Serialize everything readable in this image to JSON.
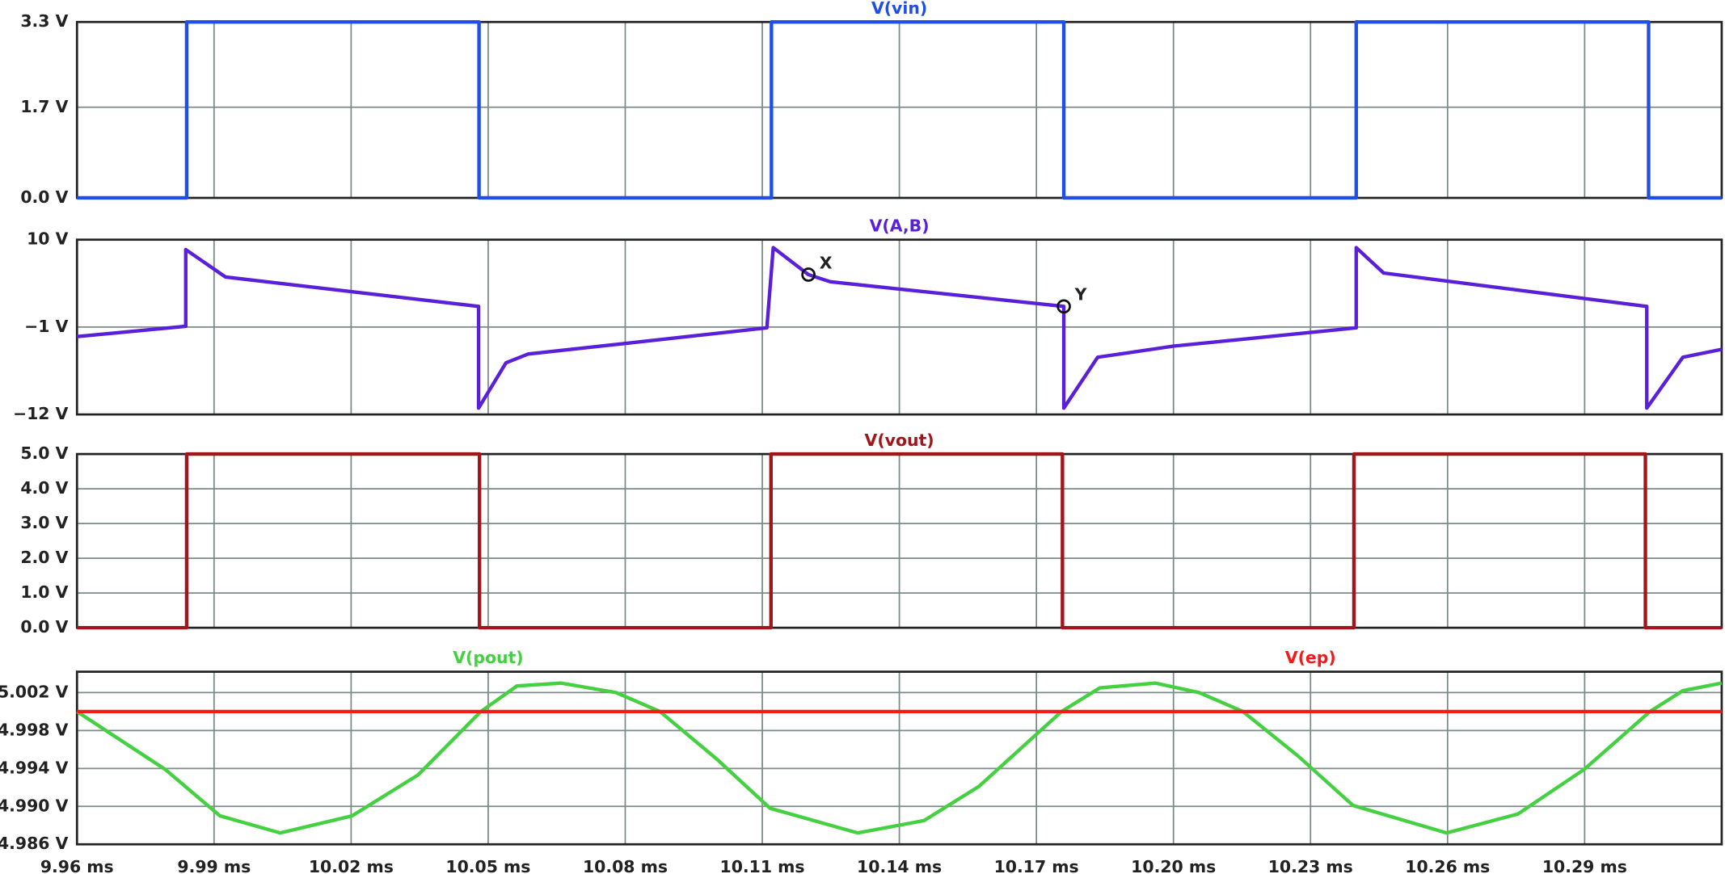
{
  "chart_data": [
    {
      "type": "line",
      "xlim": [
        9.96,
        10.32
      ],
      "ylim": [
        0,
        3.3
      ],
      "yticks": [
        {
          "value": 0,
          "label": "0.0 V"
        },
        {
          "value": 1.7,
          "label": "1.7 V"
        },
        {
          "value": 3.3,
          "label": "3.3 V"
        }
      ],
      "series": [
        {
          "name": "V(vin)",
          "color": "#1f4fe6",
          "x": [
            9.96,
            9.984,
            9.984,
            10.048,
            10.048,
            10.112,
            10.112,
            10.176,
            10.176,
            10.24,
            10.24,
            10.304,
            10.304,
            10.32
          ],
          "values": [
            0,
            0,
            3.3,
            3.3,
            0,
            0,
            3.3,
            3.3,
            0,
            0,
            3.3,
            3.3,
            0,
            0
          ]
        }
      ]
    },
    {
      "type": "line",
      "xlim": [
        9.96,
        10.32
      ],
      "ylim": [
        -12,
        10
      ],
      "yticks": [
        {
          "value": -12,
          "label": "−12 V"
        },
        {
          "value": -1,
          "label": "−1 V"
        },
        {
          "value": 10,
          "label": "10 V"
        }
      ],
      "series": [
        {
          "name": "V(A,B)",
          "color": "#5a1fd8",
          "x": [
            9.96,
            9.9838,
            9.9838,
            9.9925,
            10.0479,
            10.0479,
            10.0539,
            10.0587,
            10.111,
            10.1124,
            10.1201,
            10.1249,
            10.176,
            10.176,
            10.1834,
            10.2,
            10.24,
            10.24,
            10.246,
            10.3036,
            10.3036,
            10.3115,
            10.32
          ],
          "values": [
            -2.2,
            -0.9,
            8.75,
            5.3,
            1.6,
            -11.2,
            -5.5,
            -4.4,
            -1.1,
            9.0,
            5.6,
            4.7,
            1.6,
            -11.2,
            -4.8,
            -3.4,
            -1.1,
            9.0,
            5.8,
            1.6,
            -11.2,
            -4.8,
            -3.8
          ]
        }
      ],
      "annotations": [
        {
          "text": "X",
          "x": 10.1201,
          "y": 5.6
        },
        {
          "text": "Y",
          "x": 10.176,
          "y": 1.6
        }
      ]
    },
    {
      "type": "line",
      "xlim": [
        9.96,
        10.32
      ],
      "ylim": [
        0,
        5
      ],
      "yticks": [
        {
          "value": 0,
          "label": "0.0 V"
        },
        {
          "value": 1,
          "label": "1.0 V"
        },
        {
          "value": 2,
          "label": "2.0 V"
        },
        {
          "value": 3,
          "label": "3.0 V"
        },
        {
          "value": 4,
          "label": "4.0 V"
        },
        {
          "value": 5,
          "label": "5.0 V"
        }
      ],
      "series": [
        {
          "name": "V(vout)",
          "color": "#a0161a",
          "x": [
            9.96,
            9.984,
            9.984,
            10.0481,
            10.0481,
            10.1119,
            10.1119,
            10.1757,
            10.1757,
            10.2395,
            10.2395,
            10.3033,
            10.3033,
            10.32
          ],
          "values": [
            0,
            0,
            5,
            5,
            0,
            0,
            5,
            5,
            0,
            0,
            5,
            5,
            0,
            0
          ]
        }
      ]
    },
    {
      "type": "line",
      "xlim": [
        9.96,
        10.32
      ],
      "ylim": [
        4.986,
        5.0042
      ],
      "xticks": [
        {
          "value": 9.96,
          "label": "9.96 ms"
        },
        {
          "value": 9.99,
          "label": "9.99 ms"
        },
        {
          "value": 10.02,
          "label": "10.02 ms"
        },
        {
          "value": 10.05,
          "label": "10.05 ms"
        },
        {
          "value": 10.08,
          "label": "10.08 ms"
        },
        {
          "value": 10.11,
          "label": "10.11 ms"
        },
        {
          "value": 10.14,
          "label": "10.14 ms"
        },
        {
          "value": 10.17,
          "label": "10.17 ms"
        },
        {
          "value": 10.2,
          "label": "10.20 ms"
        },
        {
          "value": 10.23,
          "label": "10.23 ms"
        },
        {
          "value": 10.26,
          "label": "10.26 ms"
        },
        {
          "value": 10.29,
          "label": "10.29 ms"
        }
      ],
      "yticks": [
        {
          "value": 4.986,
          "label": "4.986 V"
        },
        {
          "value": 4.99,
          "label": "4.990 V"
        },
        {
          "value": 4.994,
          "label": "4.994 V"
        },
        {
          "value": 4.998,
          "label": "4.998 V"
        },
        {
          "value": 5.002,
          "label": "5.002 V"
        }
      ],
      "series": [
        {
          "name": "V(pout)",
          "color": "#44d040",
          "x": [
            9.96,
            9.9793,
            9.9913,
            10.0045,
            10.0202,
            10.0346,
            10.0484,
            10.0563,
            10.0659,
            10.078,
            10.0876,
            10.1,
            10.1117,
            10.1309,
            10.1454,
            10.1574,
            10.1755,
            10.1839,
            10.196,
            10.2056,
            10.2152,
            10.2273,
            10.2393,
            10.2598,
            10.2754,
            10.2899,
            10.3043,
            10.3115,
            10.32
          ],
          "values": [
            5.0,
            4.9939,
            4.989,
            4.9872,
            4.989,
            4.9933,
            5.0,
            5.0027,
            5.003,
            5.002,
            5.0,
            4.995,
            4.9898,
            4.9872,
            4.9885,
            4.9921,
            5.0,
            5.0025,
            5.003,
            5.002,
            5.0,
            4.9953,
            4.9901,
            4.9872,
            4.9892,
            4.9939,
            5.0,
            5.0022,
            5.003
          ]
        },
        {
          "name": "V(ep)",
          "color": "#f01c1c",
          "x": [
            9.96,
            10.32
          ],
          "values": [
            5.0,
            5.0
          ]
        }
      ]
    }
  ]
}
